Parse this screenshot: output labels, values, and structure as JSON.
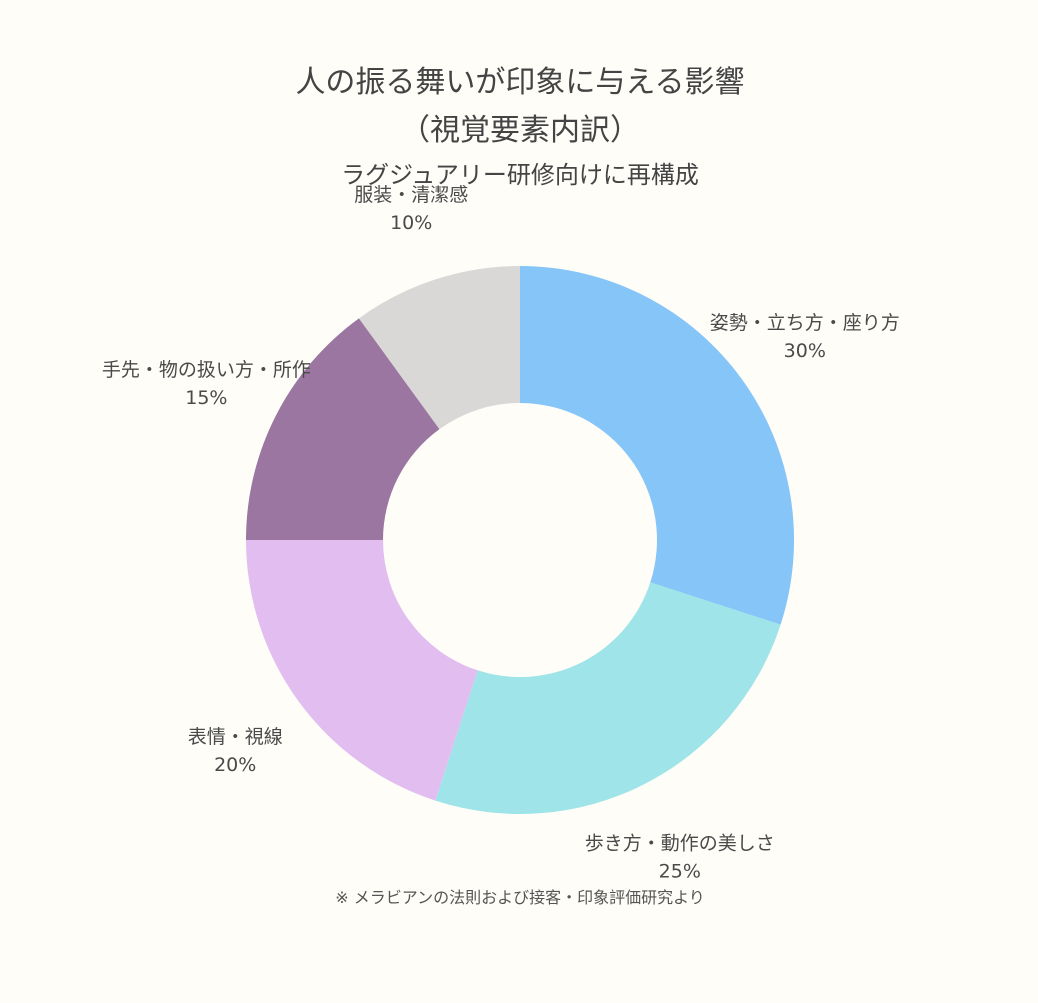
{
  "chart_data": {
    "type": "pie",
    "variant": "donut",
    "title_lines": [
      "人の振る舞いが印象に与える影響",
      "（視覚要素内訳）"
    ],
    "subtitle": "ラグジュアリー研修向けに再構成",
    "note": "※ メラビアンの法則および接客・印象評価研究より",
    "slices": [
      {
        "label": "姿勢・立ち方・座り方",
        "value": 30,
        "display": "30%",
        "color": "#85C5F7"
      },
      {
        "label": "歩き方・動作の美しさ",
        "value": 25,
        "display": "25%",
        "color": "#9FE4E8"
      },
      {
        "label": "表情・視線",
        "value": 20,
        "display": "20%",
        "color": "#E2BEF0"
      },
      {
        "label": "手先・物の扱い方・所作",
        "value": 15,
        "display": "15%",
        "color": "#9A76A0"
      },
      {
        "label": "服装・清潔感",
        "value": 10,
        "display": "10%",
        "color": "#D9D8D6"
      }
    ],
    "start_angle": "12 o'clock",
    "direction": "clockwise"
  }
}
